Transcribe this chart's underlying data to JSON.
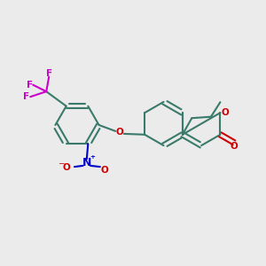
{
  "background_color": "#ebebeb",
  "bond_color": "#3a7a6a",
  "oxygen_color": "#cc0000",
  "nitrogen_color": "#0000cc",
  "fluorine_color": "#cc00cc",
  "lw": 1.5,
  "fs": 7.5,
  "figsize": [
    3.0,
    3.0
  ],
  "dpi": 100,
  "xlim": [
    0,
    10
  ],
  "ylim": [
    0,
    10
  ]
}
